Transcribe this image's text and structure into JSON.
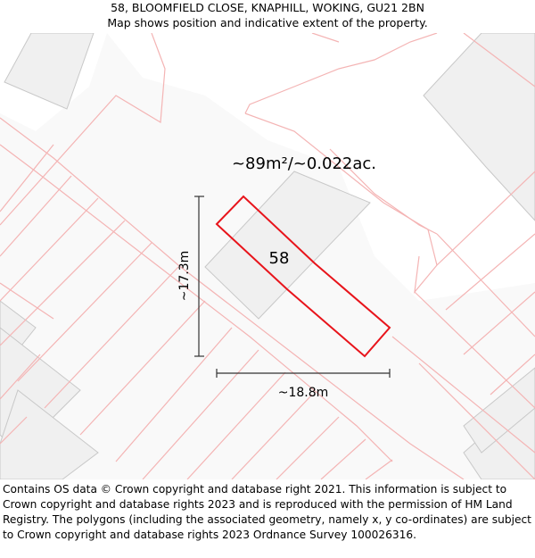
{
  "header": {
    "address": "58, BLOOMFIELD CLOSE, KNAPHILL, WOKING, GU21 2BN",
    "subtitle": "Map shows position and indicative extent of the property."
  },
  "map": {
    "area_label": "~89m²/~0.022ac.",
    "plot_number": "58",
    "height_measure": "~17.3m",
    "width_measure": "~18.8m",
    "colors": {
      "property_outline": "#e8141b",
      "parcel_lines": "#f4b4b4",
      "buildings": "#f0f0f0",
      "building_edges": "#c8c8c8",
      "dimension_lines": "#333333"
    }
  },
  "footer": {
    "attribution": "Contains OS data © Crown copyright and database right 2021. This information is subject to Crown copyright and database rights 2023 and is reproduced with the permission of HM Land Registry. The polygons (including the associated geometry, namely x, y co-ordinates) are subject to Crown copyright and database rights 2023 Ordnance Survey 100026316."
  }
}
